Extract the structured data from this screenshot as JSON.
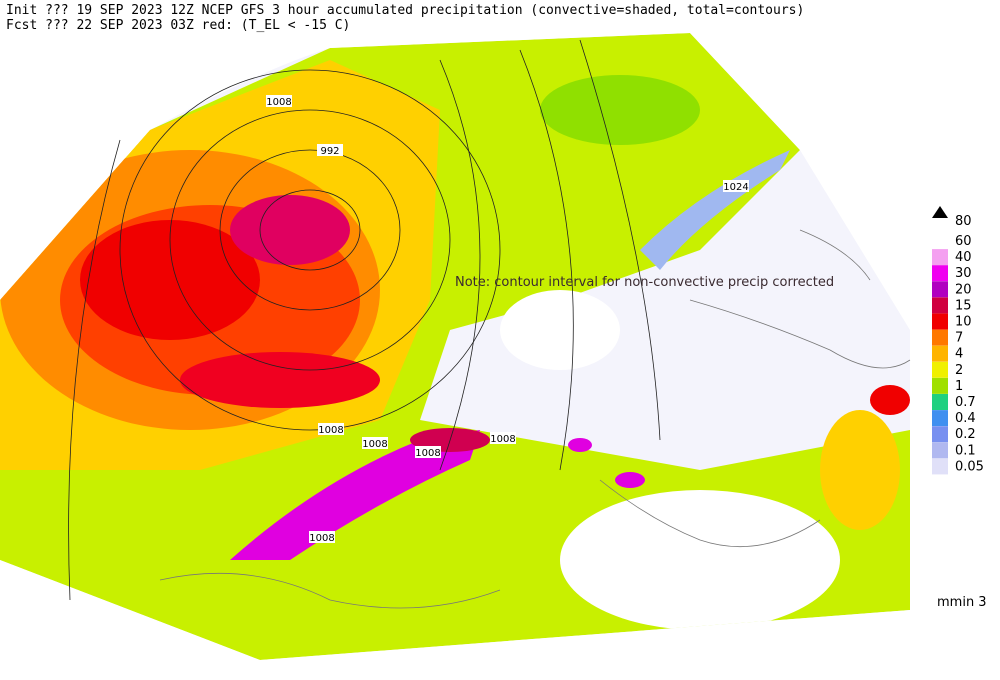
{
  "header": {
    "line1": "Init  ??? 19 SEP 2023 12Z  NCEP GFS 3 hour accumulated precipitation (convective=shaded, total=contours)",
    "line2": "Fcst ??? 22 SEP 2023 03Z  red: (T_EL < -15 C)"
  },
  "note": "Note: contour interval for non-convective precip corrected",
  "pressure_labels": [
    "1008",
    "992",
    "1024",
    "1008",
    "1008",
    "1008",
    "1008",
    "1008"
  ],
  "legend": {
    "top": "80",
    "items": [
      {
        "label": "60",
        "color": "#ffffff"
      },
      {
        "label": "40",
        "color": "#f4a0f0"
      },
      {
        "label": "30",
        "color": "#f000f0"
      },
      {
        "label": "20",
        "color": "#b000c0"
      },
      {
        "label": "15",
        "color": "#d00040"
      },
      {
        "label": "10",
        "color": "#f00000"
      },
      {
        "label": "7",
        "color": "#ff7800"
      },
      {
        "label": "4",
        "color": "#ffb400"
      },
      {
        "label": "2",
        "color": "#f0f000"
      },
      {
        "label": "1",
        "color": "#a0e000"
      },
      {
        "label": "0.7",
        "color": "#20d080"
      },
      {
        "label": "0.4",
        "color": "#4090f0"
      },
      {
        "label": "0.2",
        "color": "#7890f0"
      },
      {
        "label": "0.1",
        "color": "#b0b8f0"
      },
      {
        "label": "0.05",
        "color": "#e0e0f8"
      }
    ]
  },
  "footer": "mmin 3"
}
